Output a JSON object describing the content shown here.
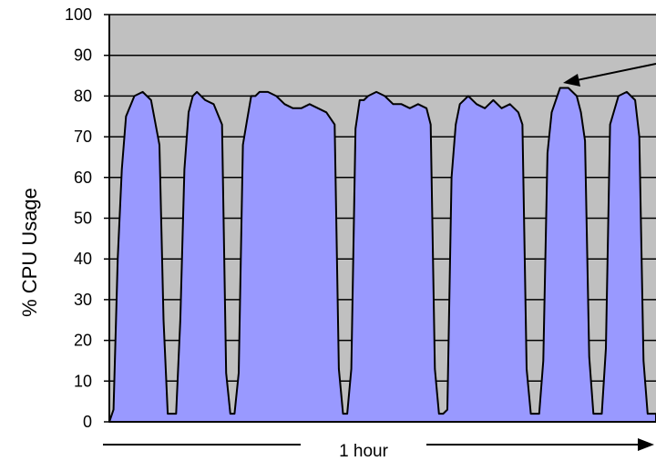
{
  "colors": {
    "plot_background": "#c0c0c0",
    "area_fill": "#9999ff",
    "area_stroke": "#000000",
    "gridline": "#000000",
    "axis": "#000000",
    "text": "#000000",
    "page_background": "#ffffff"
  },
  "chart_data": {
    "type": "area",
    "title": "",
    "ylabel": "% CPU Usage",
    "xlabel": "",
    "ylim": [
      0,
      100
    ],
    "yticks": [
      0,
      10,
      20,
      30,
      40,
      50,
      60,
      70,
      80,
      90,
      100
    ],
    "grid": "horizontal",
    "legend": "none",
    "duration_label": "1 hour",
    "x": [
      0,
      1,
      2,
      3,
      4,
      6,
      8,
      10,
      12,
      13,
      14,
      15,
      16,
      17,
      18,
      19,
      20,
      21,
      23,
      25,
      27,
      28,
      29,
      30,
      31,
      32,
      33,
      34,
      35,
      36,
      38,
      40,
      42,
      44,
      46,
      48,
      50,
      52,
      54,
      55,
      56,
      57,
      58,
      59,
      60,
      61,
      62,
      64,
      66,
      68,
      70,
      72,
      74,
      76,
      77,
      78,
      79,
      80,
      81,
      82,
      83,
      84,
      86,
      88,
      90,
      92,
      94,
      96,
      98,
      99,
      100,
      101,
      102,
      103,
      104,
      105,
      106,
      108,
      110,
      112,
      113,
      114,
      115,
      116,
      117,
      118,
      119,
      120,
      122,
      124,
      126,
      127,
      128,
      129,
      130,
      131
    ],
    "y": [
      0,
      3,
      40,
      62,
      75,
      80,
      81,
      79,
      68,
      25,
      2,
      2,
      2,
      25,
      62,
      76,
      80,
      81,
      79,
      78,
      73,
      12,
      2,
      2,
      12,
      68,
      74,
      80,
      80,
      81,
      81,
      80,
      78,
      77,
      77,
      78,
      77,
      76,
      73,
      13,
      2,
      2,
      13,
      72,
      79,
      79,
      80,
      81,
      80,
      78,
      78,
      77,
      78,
      77,
      73,
      13,
      2,
      2,
      3,
      60,
      73,
      78,
      80,
      78,
      77,
      79,
      77,
      78,
      76,
      73,
      13,
      2,
      2,
      2,
      15,
      66,
      76,
      82,
      82,
      80,
      76,
      69,
      16,
      2,
      2,
      2,
      18,
      73,
      80,
      81,
      79,
      70,
      15,
      2,
      2,
      2
    ]
  }
}
